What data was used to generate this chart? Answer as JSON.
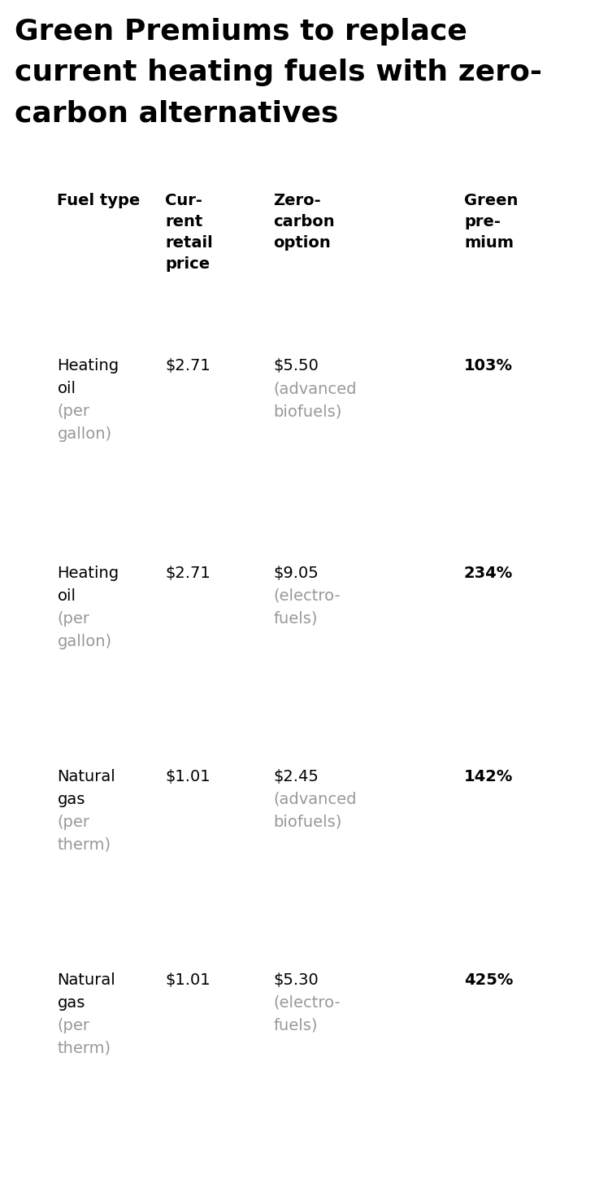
{
  "title_lines": [
    "Green Premiums to replace",
    "current heating fuels with zero-",
    "carbon alternatives"
  ],
  "title_fontsize": 26,
  "title_color": "#000000",
  "title_fontweight": "bold",
  "table_border_color": "#222222",
  "header": {
    "col1": [
      "Fuel type"
    ],
    "col2": [
      "Cur-",
      "rent",
      "retail",
      "price"
    ],
    "col3": [
      "Zero-",
      "carbon",
      "option"
    ],
    "col4": [
      "Green",
      "pre-",
      "mium"
    ]
  },
  "rows": [
    {
      "fuel_line1": "Heating",
      "fuel_line2": "oil",
      "fuel_line3": "(per",
      "fuel_line4": "gallon)",
      "current_price": "$2.71",
      "zero_carbon_line1": "$5.50",
      "zero_carbon_line2": "(advanced",
      "zero_carbon_line3": "biofuels)",
      "green_premium": "103%"
    },
    {
      "fuel_line1": "Heating",
      "fuel_line2": "oil",
      "fuel_line3": "(per",
      "fuel_line4": "gallon)",
      "current_price": "$2.71",
      "zero_carbon_line1": "$9.05",
      "zero_carbon_line2": "(electro-",
      "zero_carbon_line3": "fuels)",
      "green_premium": "234%"
    },
    {
      "fuel_line1": "Natural",
      "fuel_line2": "gas",
      "fuel_line3": "(per",
      "fuel_line4": "therm)",
      "current_price": "$1.01",
      "zero_carbon_line1": "$2.45",
      "zero_carbon_line2": "(advanced",
      "zero_carbon_line3": "biofuels)",
      "green_premium": "142%"
    },
    {
      "fuel_line1": "Natural",
      "fuel_line2": "gas",
      "fuel_line3": "(per",
      "fuel_line4": "therm)",
      "current_price": "$1.01",
      "zero_carbon_line1": "$5.30",
      "zero_carbon_line2": "(electro-",
      "zero_carbon_line3": "fuels)",
      "green_premium": "425%"
    }
  ],
  "fig_width": 7.37,
  "fig_height": 14.55,
  "dpi": 100,
  "gray_color": "#999999",
  "black_color": "#000000"
}
